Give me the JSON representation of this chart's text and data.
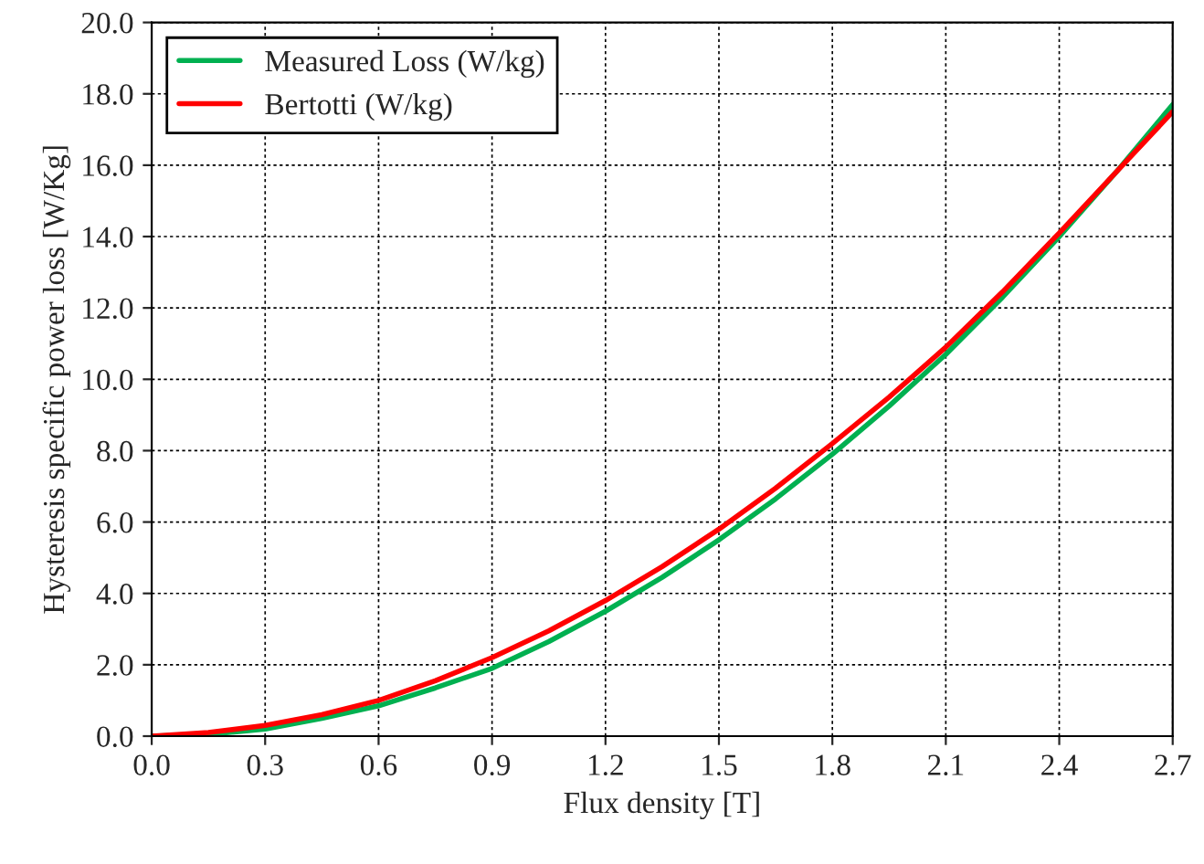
{
  "chart_data": {
    "type": "line",
    "xlabel": "Flux density [T]",
    "ylabel": "Hysteresis specific power loss [W/Kg]",
    "x": [
      0,
      0.15,
      0.3,
      0.45,
      0.6,
      0.75,
      0.9,
      1.05,
      1.2,
      1.35,
      1.5,
      1.65,
      1.8,
      1.95,
      2.1,
      2.25,
      2.4,
      2.55,
      2.7
    ],
    "series": [
      {
        "name": "Measured Loss (W/kg)",
        "color": "#00b050",
        "values": [
          0,
          0.05,
          0.2,
          0.5,
          0.85,
          1.35,
          1.9,
          2.65,
          3.5,
          4.45,
          5.5,
          6.65,
          7.9,
          9.25,
          10.7,
          12.3,
          14.0,
          15.8,
          17.7
        ]
      },
      {
        "name": "Bertotti (W/kg)",
        "color": "#ff0000",
        "values": [
          0,
          0.1,
          0.3,
          0.6,
          1.0,
          1.55,
          2.2,
          2.95,
          3.8,
          4.75,
          5.8,
          6.95,
          8.2,
          9.5,
          10.9,
          12.45,
          14.1,
          15.8,
          17.5
        ]
      }
    ],
    "xlim": [
      0,
      2.7
    ],
    "ylim": [
      0,
      20
    ],
    "xticks": [
      {
        "value": 0,
        "label": "0.0"
      },
      0.3,
      0.6,
      0.9,
      1.2,
      1.5,
      1.8,
      2.1,
      2.4,
      2.7
    ],
    "yticks": [
      {
        "value": 0,
        "label": "0.0"
      },
      {
        "value": 2,
        "label": "2.0"
      },
      {
        "value": 4,
        "label": "4.0"
      },
      {
        "value": 6,
        "label": "6.0"
      },
      {
        "value": 8,
        "label": "8.0"
      },
      {
        "value": 10,
        "label": "10.0"
      },
      {
        "value": 12,
        "label": "12.0"
      },
      {
        "value": 14,
        "label": "14.0"
      },
      {
        "value": 16,
        "label": "16.0"
      },
      {
        "value": 18,
        "label": "18.0"
      },
      {
        "value": 20,
        "label": "20.0"
      }
    ],
    "grid": true,
    "legend": "top left",
    "line_style": "solid"
  }
}
